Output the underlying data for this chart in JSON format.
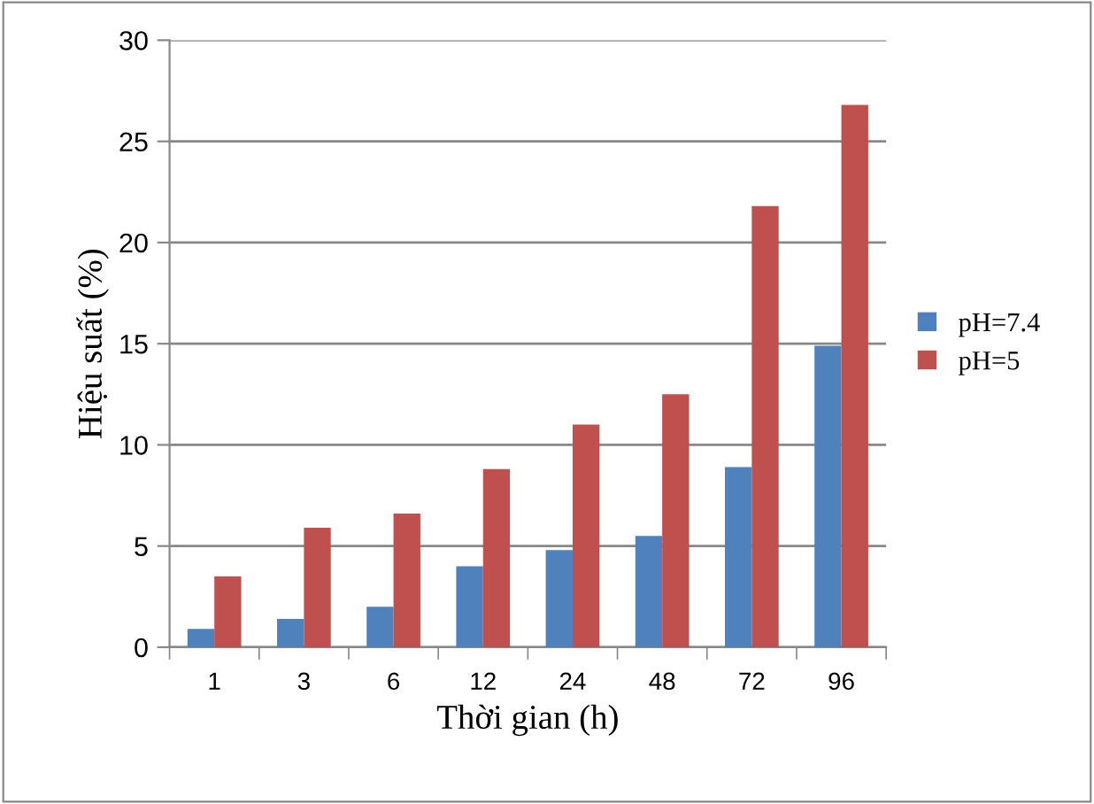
{
  "chart_data": {
    "type": "bar",
    "xlabel": "Thời gian (h)",
    "ylabel": "Hiệu suất (%)",
    "categories": [
      "1",
      "3",
      "6",
      "12",
      "24",
      "48",
      "72",
      "96"
    ],
    "series": [
      {
        "name": "pH=7.4",
        "color": "#4f81bd",
        "values": [
          0.9,
          1.4,
          2.0,
          4.0,
          4.8,
          5.5,
          8.9,
          14.9
        ]
      },
      {
        "name": "pH=5",
        "color": "#c0504d",
        "values": [
          3.5,
          5.9,
          6.6,
          8.8,
          11.0,
          12.5,
          21.8,
          26.8
        ]
      }
    ],
    "ylim": [
      0,
      30
    ],
    "yticks": [
      0,
      5,
      10,
      15,
      20,
      25,
      30
    ],
    "grid": "y",
    "legend": "right"
  }
}
